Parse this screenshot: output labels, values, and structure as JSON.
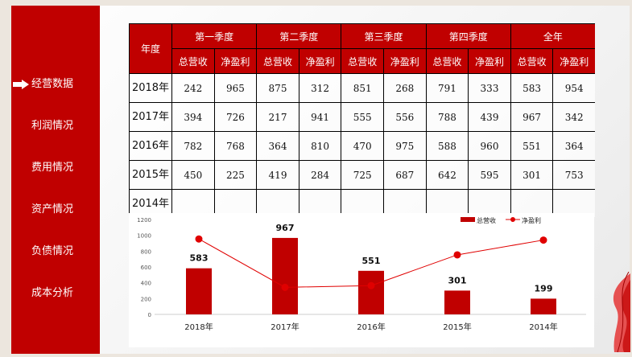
{
  "sidebar": {
    "items": [
      {
        "label": "经营数据",
        "active": true,
        "icon": "arrow-right-icon"
      },
      {
        "label": "利润情况"
      },
      {
        "label": "费用情况"
      },
      {
        "label": "资产情况"
      },
      {
        "label": "负债情况"
      },
      {
        "label": "成本分析"
      }
    ]
  },
  "table": {
    "year_header": "年度",
    "groups": [
      "第一季度",
      "第二季度",
      "第三季度",
      "第四季度",
      "全年"
    ],
    "sub": [
      "总营收",
      "净盈利"
    ],
    "rows": [
      {
        "year": "2018年",
        "values": [
          "242",
          "965",
          "875",
          "312",
          "851",
          "268",
          "791",
          "333",
          "583",
          "954"
        ]
      },
      {
        "year": "2017年",
        "values": [
          "394",
          "726",
          "217",
          "941",
          "555",
          "556",
          "788",
          "439",
          "967",
          "342"
        ]
      },
      {
        "year": "2016年",
        "values": [
          "782",
          "768",
          "364",
          "810",
          "470",
          "975",
          "588",
          "960",
          "551",
          "364"
        ]
      },
      {
        "year": "2015年",
        "values": [
          "450",
          "225",
          "419",
          "284",
          "725",
          "687",
          "642",
          "595",
          "301",
          "753"
        ]
      },
      {
        "year": "2014年",
        "values": [
          "",
          "",
          "",
          "",
          "",
          "",
          "",
          "",
          "",
          ""
        ]
      }
    ]
  },
  "chart_data": {
    "type": "bar+line",
    "categories": [
      "2018年",
      "2017年",
      "2016年",
      "2015年",
      "2014年"
    ],
    "series": [
      {
        "name": "总营收",
        "type": "bar",
        "values": [
          583,
          967,
          551,
          301,
          199
        ],
        "color": "#c00000"
      },
      {
        "name": "净盈利",
        "type": "line",
        "values": [
          954,
          342,
          364,
          753,
          940
        ],
        "color": "#e00000"
      }
    ],
    "yticks": [
      "0",
      "200",
      "400",
      "600",
      "800",
      "1000",
      "1200"
    ],
    "ylim": [
      0,
      1200
    ],
    "legend": "top-right",
    "grid": false
  },
  "colors": {
    "accent": "#c00000",
    "background": "#ece6de"
  }
}
